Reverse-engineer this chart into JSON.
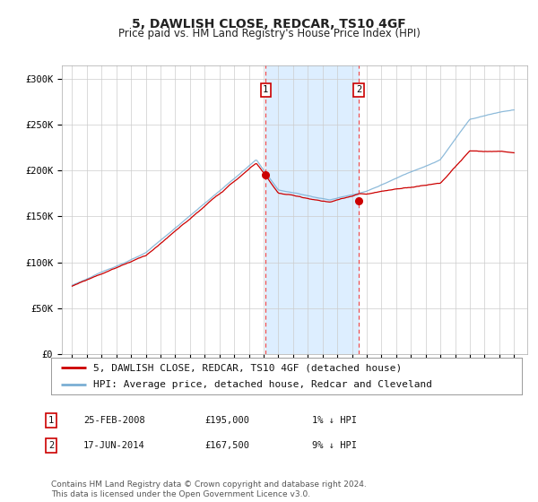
{
  "title": "5, DAWLISH CLOSE, REDCAR, TS10 4GF",
  "subtitle": "Price paid vs. HM Land Registry's House Price Index (HPI)",
  "ylabel_ticks": [
    "£0",
    "£50K",
    "£100K",
    "£150K",
    "£200K",
    "£250K",
    "£300K"
  ],
  "ytick_values": [
    0,
    50000,
    100000,
    150000,
    200000,
    250000,
    300000
  ],
  "ylim": [
    0,
    315000
  ],
  "legend_line1": "5, DAWLISH CLOSE, REDCAR, TS10 4GF (detached house)",
  "legend_line2": "HPI: Average price, detached house, Redcar and Cleveland",
  "annotation1_date": "25-FEB-2008",
  "annotation1_price": "£195,000",
  "annotation1_hpi": "1% ↓ HPI",
  "annotation2_date": "17-JUN-2014",
  "annotation2_price": "£167,500",
  "annotation2_hpi": "9% ↓ HPI",
  "sale1_date_num": 2008.14,
  "sale1_price": 195000,
  "sale2_date_num": 2014.46,
  "sale2_price": 167500,
  "line_color_red": "#cc0000",
  "line_color_blue": "#7aafd4",
  "shading_color": "#ddeeff",
  "background_color": "#ffffff",
  "grid_color": "#cccccc",
  "title_fontsize": 10,
  "subtitle_fontsize": 8.5,
  "tick_fontsize": 7.5,
  "legend_fontsize": 8,
  "footer_fontsize": 6.5,
  "footer_text": "Contains HM Land Registry data © Crown copyright and database right 2024.\nThis data is licensed under the Open Government Licence v3.0."
}
